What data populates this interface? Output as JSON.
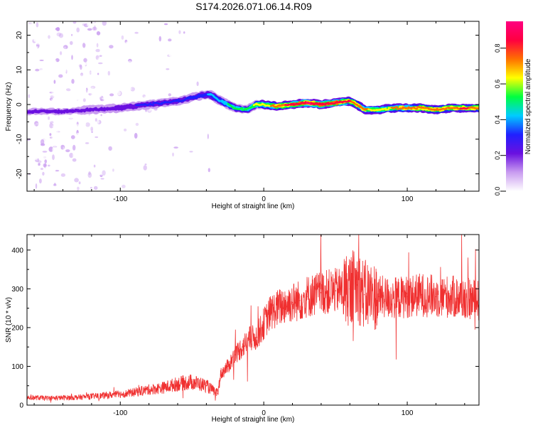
{
  "title": "S174.2026.071.06.14.R09",
  "chart_data": [
    {
      "type": "heatmap",
      "name": "spectrogram",
      "xlabel": "Height of straight line (km)",
      "ylabel": "Frequency (Hz)",
      "xlim": [
        -165,
        150
      ],
      "ylim": [
        -25,
        24
      ],
      "xticks": [
        -100,
        0,
        100
      ],
      "yticks": [
        -20,
        -10,
        0,
        10,
        20
      ],
      "colorbar": {
        "label": "Normalized spectral amplitude",
        "range": [
          0,
          0.95
        ],
        "ticks": [
          "0.0",
          "0.2",
          "0.4",
          "0.6",
          "0.8"
        ],
        "tick_values": [
          0,
          0.2,
          0.4,
          0.6,
          0.8
        ],
        "colors": [
          "#ffffff",
          "#c99cf0",
          "#6a10e0",
          "#2020ff",
          "#00ccff",
          "#00ff40",
          "#ffff00",
          "#ff7000",
          "#ff0040",
          "#ff0080"
        ]
      },
      "ridge": {
        "description": "frequency of peak spectral amplitude vs height",
        "x": [
          -140,
          -120,
          -100,
          -80,
          -60,
          -45,
          -38,
          -30,
          -20,
          -12,
          -5,
          0,
          10,
          20,
          30,
          40,
          50,
          60,
          65,
          70,
          80,
          90,
          100,
          110,
          120,
          130,
          140,
          150
        ],
        "y": [
          -2,
          -1.5,
          -1,
          0,
          1,
          2.5,
          3,
          1,
          -1,
          -1.5,
          0,
          0,
          -0.5,
          0,
          0.5,
          0,
          0.5,
          1,
          0,
          -1.5,
          -1.5,
          -1,
          -1,
          -1,
          -1.5,
          -1,
          -1,
          -1
        ],
        "peak_amplitude": [
          0.2,
          0.22,
          0.25,
          0.28,
          0.3,
          0.35,
          0.38,
          0.45,
          0.5,
          0.55,
          0.6,
          0.65,
          0.75,
          0.85,
          0.9,
          0.88,
          0.85,
          0.8,
          0.75,
          0.7,
          0.65,
          0.7,
          0.72,
          0.75,
          0.75,
          0.78,
          0.8,
          0.75
        ]
      }
    },
    {
      "type": "line",
      "name": "snr",
      "xlabel": "Height of straight line (km)",
      "ylabel": "SNR (10 * v/v)",
      "xlim": [
        -165,
        150
      ],
      "ylim": [
        0,
        440
      ],
      "xticks": [
        -100,
        0,
        100
      ],
      "yticks": [
        0,
        100,
        200,
        300,
        400
      ],
      "color": "#f03030",
      "series": [
        {
          "name": "SNR",
          "x": [
            -165,
            -150,
            -130,
            -110,
            -95,
            -80,
            -70,
            -60,
            -50,
            -40,
            -32,
            -30,
            -25,
            -20,
            -15,
            -10,
            -5,
            0,
            5,
            10,
            15,
            20,
            25,
            30,
            40,
            50,
            60,
            65,
            70,
            80,
            90,
            100,
            110,
            120,
            130,
            140,
            150
          ],
          "y": [
            20,
            18,
            20,
            25,
            30,
            40,
            45,
            55,
            60,
            50,
            30,
            80,
            100,
            130,
            150,
            170,
            175,
            210,
            240,
            250,
            260,
            265,
            270,
            280,
            290,
            295,
            300,
            310,
            285,
            280,
            275,
            280,
            285,
            280,
            280,
            275,
            270
          ]
        }
      ]
    }
  ]
}
